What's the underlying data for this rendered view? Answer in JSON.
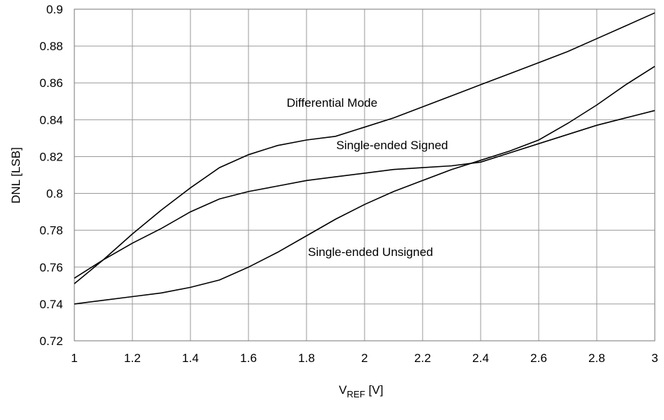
{
  "chart_data": {
    "type": "line",
    "xlabel_main": "V",
    "xlabel_sub": "REF",
    "xlabel_unit": " [V]",
    "ylabel": "DNL [LSB]",
    "xlim": [
      1,
      3
    ],
    "ylim": [
      0.72,
      0.9
    ],
    "x_ticks": [
      "1",
      "1.2",
      "1.4",
      "1.6",
      "1.8",
      "2",
      "2.2",
      "2.4",
      "2.6",
      "2.8",
      "3"
    ],
    "y_ticks": [
      "0.72",
      "0.74",
      "0.76",
      "0.78",
      "0.8",
      "0.82",
      "0.84",
      "0.86",
      "0.88",
      "0.9"
    ],
    "grid": true,
    "series": [
      {
        "name": "Differential Mode",
        "x": [
          1.0,
          1.1,
          1.2,
          1.3,
          1.4,
          1.5,
          1.6,
          1.7,
          1.8,
          1.9,
          2.0,
          2.1,
          2.2,
          2.3,
          2.4,
          2.5,
          2.6,
          2.7,
          2.8,
          2.9,
          3.0
        ],
        "values": [
          0.751,
          0.764,
          0.778,
          0.791,
          0.803,
          0.814,
          0.821,
          0.826,
          0.829,
          0.831,
          0.836,
          0.841,
          0.847,
          0.853,
          0.859,
          0.865,
          0.871,
          0.877,
          0.884,
          0.891,
          0.898
        ]
      },
      {
        "name": "Single-ended Signed",
        "x": [
          1.0,
          1.1,
          1.2,
          1.3,
          1.4,
          1.5,
          1.6,
          1.7,
          1.8,
          1.9,
          2.0,
          2.1,
          2.2,
          2.3,
          2.4,
          2.5,
          2.6,
          2.7,
          2.8,
          2.9,
          3.0
        ],
        "values": [
          0.754,
          0.764,
          0.773,
          0.781,
          0.79,
          0.797,
          0.801,
          0.804,
          0.807,
          0.809,
          0.811,
          0.813,
          0.814,
          0.815,
          0.817,
          0.822,
          0.827,
          0.832,
          0.837,
          0.841,
          0.845
        ]
      },
      {
        "name": "Single-ended Unsigned",
        "x": [
          1.0,
          1.1,
          1.2,
          1.3,
          1.4,
          1.5,
          1.6,
          1.7,
          1.8,
          1.9,
          2.0,
          2.1,
          2.2,
          2.3,
          2.4,
          2.5,
          2.6,
          2.7,
          2.8,
          2.9,
          3.0
        ],
        "values": [
          0.74,
          0.742,
          0.744,
          0.746,
          0.749,
          0.753,
          0.76,
          0.768,
          0.777,
          0.786,
          0.794,
          0.801,
          0.807,
          0.813,
          0.818,
          0.823,
          0.829,
          0.838,
          0.848,
          0.859,
          0.869
        ]
      }
    ]
  }
}
